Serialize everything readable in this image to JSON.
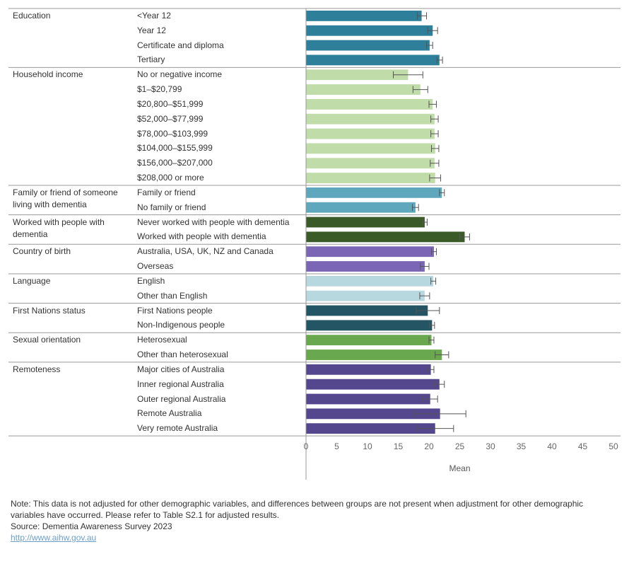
{
  "chart_data": {
    "type": "bar",
    "orientation": "horizontal",
    "xlabel": "Mean",
    "xlim": [
      0,
      50
    ],
    "xticks": [
      0,
      5,
      10,
      15,
      20,
      25,
      30,
      35,
      40,
      45,
      50
    ],
    "groups": [
      {
        "name": "Education",
        "color": "#2e7f9a",
        "rows": [
          {
            "label": "<Year 12",
            "value": 18.8,
            "low": 18.1,
            "high": 19.6
          },
          {
            "label": "Year 12",
            "value": 20.6,
            "low": 19.8,
            "high": 21.4
          },
          {
            "label": "Certificate and diploma",
            "value": 20.1,
            "low": 19.6,
            "high": 20.6
          },
          {
            "label": "Tertiary",
            "value": 21.7,
            "low": 21.3,
            "high": 22.2
          }
        ]
      },
      {
        "name": "Household income",
        "color": "#bfdca9",
        "rows": [
          {
            "label": "No or negative income",
            "value": 16.6,
            "low": 14.2,
            "high": 19.0
          },
          {
            "label": "$1–$20,799",
            "value": 18.6,
            "low": 17.4,
            "high": 19.8
          },
          {
            "label": "$20,800–$51,999",
            "value": 20.6,
            "low": 20.0,
            "high": 21.2
          },
          {
            "label": "$52,000–$77,999",
            "value": 20.9,
            "low": 20.3,
            "high": 21.5
          },
          {
            "label": "$78,000–$103,999",
            "value": 20.9,
            "low": 20.3,
            "high": 21.5
          },
          {
            "label": "$104,000–$155,999",
            "value": 21.0,
            "low": 20.4,
            "high": 21.6
          },
          {
            "label": "$156,000–$207,000",
            "value": 20.9,
            "low": 20.2,
            "high": 21.6
          },
          {
            "label": "$208,000 or more",
            "value": 21.0,
            "low": 20.1,
            "high": 21.9
          }
        ]
      },
      {
        "name": "Family or friend of someone living with dementia",
        "color": "#5fa7bd",
        "rows": [
          {
            "label": "Family or friend",
            "value": 22.1,
            "low": 21.7,
            "high": 22.5
          },
          {
            "label": "No family or friend",
            "value": 17.8,
            "low": 17.3,
            "high": 18.3
          }
        ]
      },
      {
        "name": "Worked with people with dementia",
        "color": "#3a5a27",
        "rows": [
          {
            "label": "Never worked with people with dementia",
            "value": 19.3,
            "low": 19.0,
            "high": 19.7
          },
          {
            "label": "Worked with people with dementia",
            "value": 25.8,
            "low": 25.0,
            "high": 26.6
          }
        ]
      },
      {
        "name": "Country of birth",
        "color": "#7b65b5",
        "rows": [
          {
            "label": "Australia, USA, UK, NZ and Canada",
            "value": 20.8,
            "low": 20.4,
            "high": 21.2
          },
          {
            "label": "Overseas",
            "value": 19.3,
            "low": 18.6,
            "high": 20.0
          }
        ]
      },
      {
        "name": "Language",
        "color": "#b8d8e0",
        "rows": [
          {
            "label": "English",
            "value": 20.7,
            "low": 20.3,
            "high": 21.1
          },
          {
            "label": "Other than English",
            "value": 19.3,
            "low": 18.5,
            "high": 20.1
          }
        ]
      },
      {
        "name": "First Nations status",
        "color": "#245565",
        "rows": [
          {
            "label": "First Nations people",
            "value": 19.8,
            "low": 17.9,
            "high": 21.7
          },
          {
            "label": "Non-Indigenous people",
            "value": 20.5,
            "low": 20.1,
            "high": 20.9
          }
        ]
      },
      {
        "name": "Sexual orientation",
        "color": "#6aa84f",
        "rows": [
          {
            "label": "Heterosexual",
            "value": 20.4,
            "low": 20.0,
            "high": 20.8
          },
          {
            "label": "Other than heterosexual",
            "value": 22.1,
            "low": 21.0,
            "high": 23.2
          }
        ]
      },
      {
        "name": "Remoteness",
        "color": "#54478e",
        "rows": [
          {
            "label": "Major cities of Australia",
            "value": 20.3,
            "low": 19.8,
            "high": 20.8
          },
          {
            "label": "Inner regional Australia",
            "value": 21.7,
            "low": 20.9,
            "high": 22.5
          },
          {
            "label": "Outer regional Australia",
            "value": 20.2,
            "low": 19.0,
            "high": 21.4
          },
          {
            "label": "Remote Australia",
            "value": 21.8,
            "low": 17.6,
            "high": 26.0
          },
          {
            "label": "Very remote Australia",
            "value": 21.0,
            "low": 18.2,
            "high": 24.0
          }
        ]
      }
    ]
  },
  "footer": {
    "note": "Note: This data is not adjusted for other demographic variables, and differences between groups are not present when adjustment for other demographic variables have occurred. Please refer to Table S2.1 for adjusted results.",
    "source": "Source: Dementia Awareness Survey 2023",
    "link": "http://www.aihw.gov.au"
  }
}
